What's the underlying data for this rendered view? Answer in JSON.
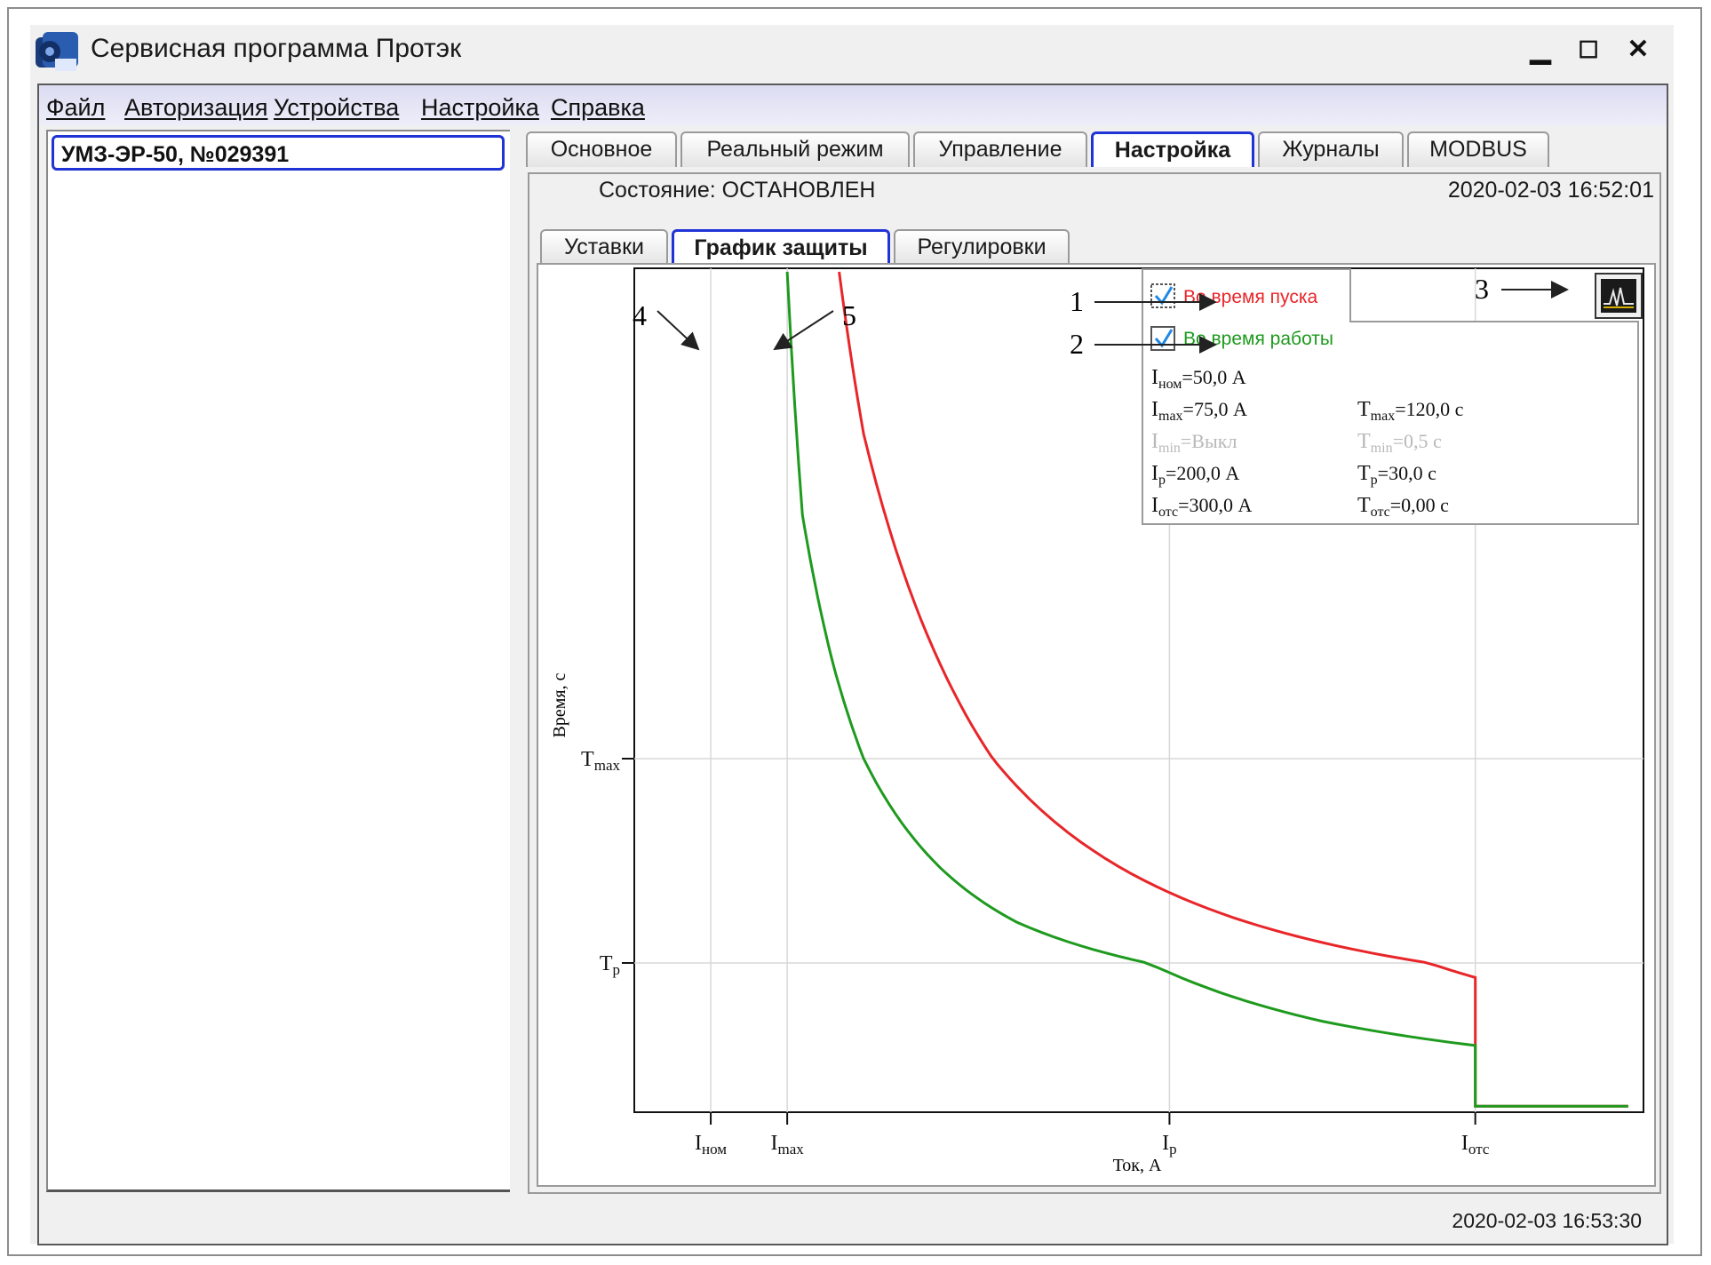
{
  "window": {
    "title": "Сервисная программа Протэк",
    "controls": {
      "minimize": "▁",
      "maximize": "☐",
      "close": "✕"
    }
  },
  "menu": {
    "items": [
      "Файл",
      "Авторизация",
      "Устройства",
      "Настройка",
      "Справка"
    ]
  },
  "devices": {
    "selected": "УМЗ-ЭР-50, №029391"
  },
  "tabs": [
    "Основное",
    "Реальный режим",
    "Управление",
    "Настройка",
    "Журналы",
    "MODBUS"
  ],
  "active_tab": "Настройка",
  "status": {
    "label": "Состояние: ОСТАНОВЛЕН",
    "datetime": "2020-02-03   16:52:01"
  },
  "subtabs": [
    "Уставки",
    "График защиты",
    "Регулировки"
  ],
  "active_subtab": "График защиты",
  "legend": {
    "start_label": "Во время пуска",
    "run_label": "Во время работы",
    "start_checked": true,
    "run_checked": true,
    "start_color": "#e8262a",
    "run_color": "#1e9a1e",
    "params": {
      "inom": {
        "sym": "I",
        "sub": "ном",
        "val": "=50,0 А"
      },
      "imax": {
        "sym": "I",
        "sub": "max",
        "val": "=75,0 А"
      },
      "tmax": {
        "sym": "T",
        "sub": "max",
        "val": "=120,0 с"
      },
      "imin": {
        "sym": "I",
        "sub": "min",
        "val": "=Выкл"
      },
      "tmin": {
        "sym": "T",
        "sub": "min",
        "val": "=0,5 с"
      },
      "ip": {
        "sym": "I",
        "sub": "р",
        "val": "=200,0 А"
      },
      "tp": {
        "sym": "T",
        "sub": "р",
        "val": "=30,0 с"
      },
      "iotc": {
        "sym": "I",
        "sub": "отс",
        "val": "=300,0 А"
      },
      "totc": {
        "sym": "T",
        "sub": "отс",
        "val": "=0,00 с"
      }
    }
  },
  "chart_data": {
    "type": "line",
    "xlabel": "Ток, А",
    "ylabel": "Время, с",
    "x_ticks": [
      {
        "sym": "I",
        "sub": "ном",
        "value": 50
      },
      {
        "sym": "I",
        "sub": "max",
        "value": 75
      },
      {
        "sym": "I",
        "sub": "р",
        "value": 200
      },
      {
        "sym": "I",
        "sub": "отс",
        "value": 300
      }
    ],
    "y_ticks": [
      {
        "sym": "T",
        "sub": "max",
        "value": 120
      },
      {
        "sym": "T",
        "sub": "р",
        "value": 30
      }
    ],
    "series": [
      {
        "name": "Во время пуска",
        "color": "#e8262a",
        "x": [
          92,
          100,
          125,
          150,
          200,
          250,
          300,
          300,
          350
        ],
        "y": [
          300,
          240,
          155,
          108,
          61,
          39,
          27,
          0.5,
          0.5
        ]
      },
      {
        "name": "Во время работы",
        "color": "#1e9a1e",
        "x": [
          75,
          80,
          90,
          100,
          125,
          150,
          200,
          250,
          300,
          300,
          350
        ],
        "y": [
          300,
          210,
          155,
          120,
          72,
          48,
          28,
          18,
          13,
          0.5,
          0.5
        ]
      }
    ],
    "grid": true
  },
  "annotations": [
    "1",
    "2",
    "3",
    "4",
    "5"
  ],
  "footer": {
    "datetime": "2020-02-03 16:53:30"
  }
}
